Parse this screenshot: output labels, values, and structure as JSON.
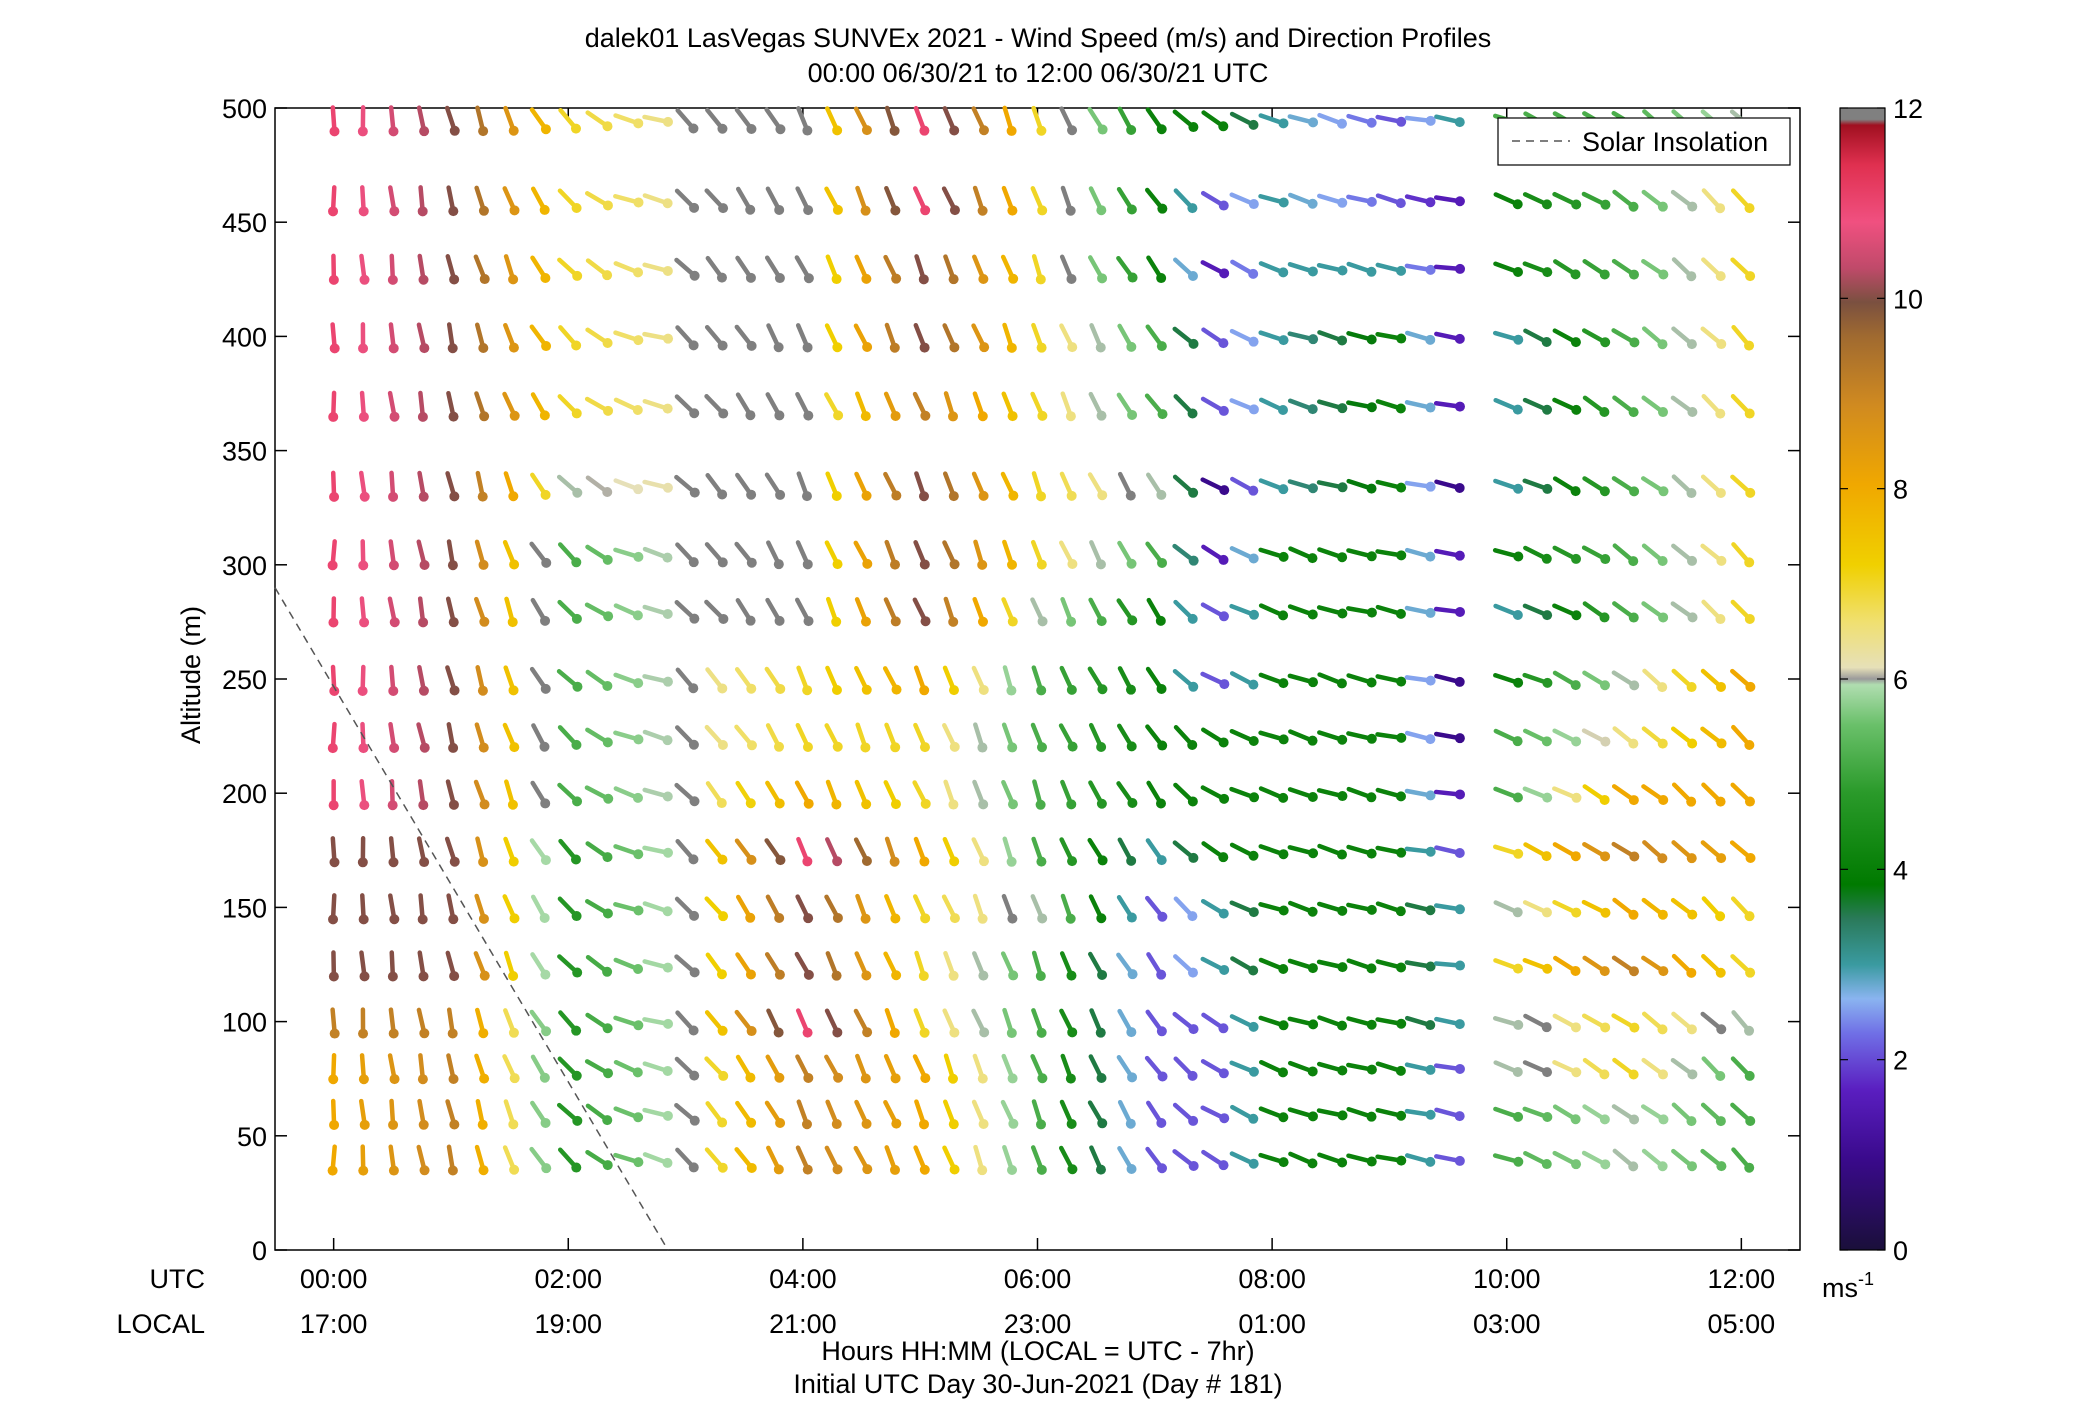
{
  "chart_data": {
    "type": "scatter",
    "title_line1": "dalek01 LasVegas SUNVEx 2021 - Wind Speed (m/s) and Direction Profiles",
    "title_line2": "00:00 06/30/21 to 12:00 06/30/21  UTC",
    "ylabel": "Altitude (m)",
    "xlabel_line1": "Hours HH:MM  (LOCAL = UTC - 7hr)",
    "xlabel_line2": "Initial UTC Day 30-Jun-2021 (Day # 181)",
    "x_row_label_utc": "UTC",
    "x_row_label_local": "LOCAL",
    "xlim_hours": [
      -0.5,
      12.5
    ],
    "ylim": [
      0,
      500
    ],
    "yticks": [
      0,
      50,
      100,
      150,
      200,
      250,
      300,
      350,
      400,
      450,
      500
    ],
    "xticks_hours": [
      0,
      2,
      4,
      6,
      8,
      10,
      12
    ],
    "xticklabels_utc": [
      "00:00",
      "02:00",
      "04:00",
      "06:00",
      "08:00",
      "10:00",
      "12:00"
    ],
    "xticklabels_local": [
      "17:00",
      "19:00",
      "21:00",
      "23:00",
      "01:00",
      "03:00",
      "05:00"
    ],
    "legend": {
      "label": "Solar Insolation",
      "placement": "top-right"
    },
    "solar_insolation_line": [
      [
        -0.5,
        290
      ],
      [
        2.85,
        0
      ]
    ],
    "colorbar": {
      "min": 0,
      "max": 12,
      "ticks": [
        0,
        2,
        4,
        6,
        8,
        10,
        12
      ],
      "unit_label": "ms",
      "unit_exponent": "-1"
    },
    "altitudes": [
      40,
      60,
      80,
      100,
      125,
      150,
      175,
      200,
      225,
      250,
      280,
      305,
      335,
      370,
      400,
      430,
      460,
      495
    ],
    "time_columns_hours": [
      0,
      0.25,
      0.5,
      0.75,
      1.0,
      1.25,
      1.5,
      1.75,
      2.0,
      2.25,
      2.5,
      2.75,
      3.0,
      3.25,
      3.5,
      3.75,
      4.0,
      4.25,
      4.5,
      4.75,
      5.0,
      5.25,
      5.5,
      5.75,
      6.0,
      6.25,
      6.5,
      6.75,
      7.0,
      7.25,
      7.5,
      7.75,
      8.0,
      8.25,
      8.5,
      8.75,
      9.0,
      9.25,
      9.5,
      10.0,
      10.25,
      10.5,
      10.75,
      11.0,
      11.25,
      11.5,
      11.75,
      12.0
    ],
    "speed_anchor_times": [
      0,
      1,
      2,
      3,
      4,
      5,
      6,
      7,
      7.5,
      8,
      9,
      9.5,
      10,
      11,
      12
    ],
    "speed_anchors_by_altitude": [
      [
        8,
        9,
        4.5,
        6.3,
        9,
        8,
        5,
        2,
        2,
        4,
        4,
        2,
        5,
        6,
        5
      ],
      [
        8,
        9,
        4.5,
        6.3,
        9,
        8,
        5,
        2,
        2,
        4,
        4,
        2,
        5,
        6,
        5
      ],
      [
        8,
        9,
        4.5,
        6.3,
        9,
        8,
        5,
        2,
        2,
        4,
        4,
        2,
        6,
        7,
        5
      ],
      [
        9,
        9,
        4.5,
        6.3,
        11,
        7,
        5,
        2,
        2,
        4,
        4,
        3,
        6,
        7,
        6
      ],
      [
        10,
        10,
        4.5,
        6.3,
        10,
        7,
        5,
        2,
        3,
        4,
        4,
        3,
        7,
        9,
        7
      ],
      [
        10,
        10,
        4.5,
        6.3,
        10,
        7,
        6,
        2,
        3,
        4,
        4,
        3,
        6,
        8,
        7
      ],
      [
        10,
        10,
        4.5,
        6.3,
        11,
        8,
        5,
        3,
        4,
        4,
        4,
        2,
        7,
        9,
        8
      ],
      [
        11,
        10,
        5,
        6.3,
        8,
        7,
        5,
        4,
        4,
        4,
        4,
        1.5,
        5,
        8,
        8
      ],
      [
        11,
        10,
        5,
        6.3,
        7,
        7,
        5,
        4,
        4,
        4,
        4,
        1,
        5,
        6.5,
        8
      ],
      [
        11,
        10,
        5,
        6.3,
        7,
        8,
        5,
        4,
        2,
        4,
        4,
        1,
        4,
        6,
        8
      ],
      [
        11,
        10,
        5,
        6.3,
        6.3,
        10,
        6,
        4,
        2,
        4,
        4,
        1.5,
        3,
        5,
        7
      ],
      [
        11,
        10,
        5,
        6.3,
        6.3,
        10,
        7,
        5,
        1.5,
        4,
        4,
        1.5,
        4,
        5,
        7
      ],
      [
        11,
        10,
        6,
        6.3,
        6.3,
        10,
        7,
        6,
        1,
        3,
        4,
        1,
        3,
        5,
        7
      ],
      [
        11,
        10,
        7,
        6.3,
        6.3,
        9,
        7,
        5,
        2,
        3,
        4,
        1.5,
        3,
        5,
        7
      ],
      [
        11,
        10,
        7,
        6.3,
        6.3,
        10,
        7,
        5,
        2,
        3,
        4,
        1.5,
        3,
        5,
        7
      ],
      [
        11,
        10,
        7,
        6.3,
        6.3,
        10,
        7,
        4,
        1.5,
        3,
        3,
        1.5,
        4,
        5,
        7
      ],
      [
        11,
        10,
        7,
        6.3,
        6.3,
        11,
        7,
        4,
        2,
        3,
        2,
        1.5,
        4,
        5,
        7
      ],
      [
        11,
        10,
        7,
        6.3,
        6.3,
        11,
        7,
        4,
        4,
        3,
        2,
        3,
        5,
        5,
        6
      ]
    ],
    "direction_anchor_times": [
      0,
      1.5,
      2.7,
      3.0,
      4,
      6,
      7,
      7.5,
      8,
      9.5,
      10,
      11,
      12
    ],
    "direction_anchors_deg": [
      180,
      200,
      260,
      225,
      205,
      200,
      215,
      240,
      250,
      260,
      250,
      235,
      225
    ],
    "direction_notes": "Barbs drawn as a short stick with a dot at the point; orientation indicates wind direction."
  }
}
